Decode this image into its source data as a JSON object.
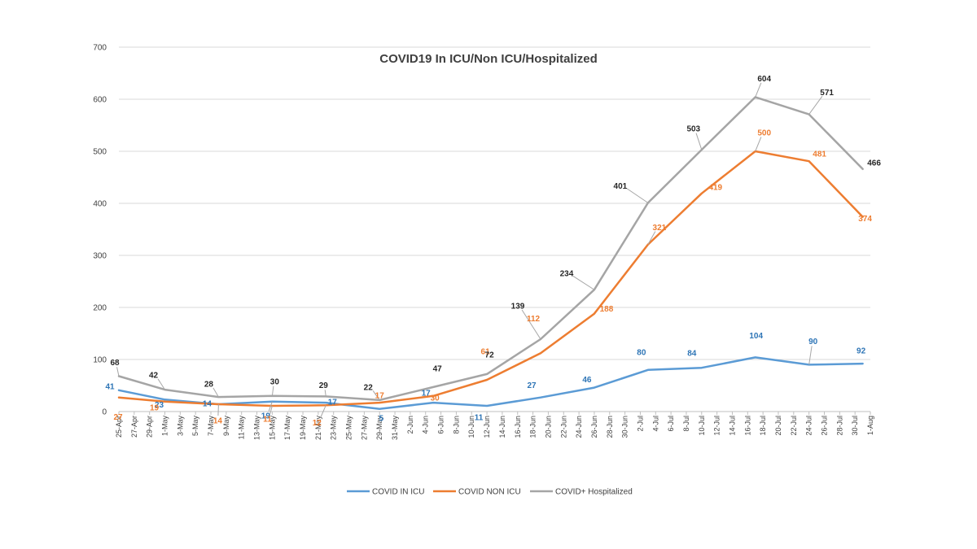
{
  "chart_data": {
    "type": "line",
    "title": "COVID19 In ICU/Non ICU/Hospitalized",
    "xlabel": "",
    "ylabel": "",
    "ylim": [
      0,
      700
    ],
    "yticks": [
      0,
      100,
      200,
      300,
      400,
      500,
      600,
      700
    ],
    "grid": true,
    "legend_position": "bottom",
    "x_tick_labels": [
      "25-Apr",
      "27-Apr",
      "29-Apr",
      "1-May",
      "3-May",
      "5-May",
      "7-May",
      "9-May",
      "11-May",
      "13-May",
      "15-May",
      "17-May",
      "19-May",
      "21-May",
      "23-May",
      "25-May",
      "27-May",
      "29-May",
      "31-May",
      "2-Jun",
      "4-Jun",
      "6-Jun",
      "8-Jun",
      "10-Jun",
      "12-Jun",
      "14-Jun",
      "16-Jun",
      "18-Jun",
      "20-Jun",
      "22-Jun",
      "24-Jun",
      "26-Jun",
      "28-Jun",
      "30-Jun",
      "2-Jul",
      "4-Jul",
      "6-Jul",
      "8-Jul",
      "10-Jul",
      "12-Jul",
      "14-Jul",
      "16-Jul",
      "18-Jul",
      "20-Jul",
      "22-Jul",
      "24-Jul",
      "26-Jul",
      "28-Jul",
      "30-Jul",
      "1-Aug"
    ],
    "x": [
      "25-Apr",
      "1-May",
      "8-May",
      "15-May",
      "22-May",
      "29-May",
      "5-Jun",
      "12-Jun",
      "19-Jun",
      "26-Jun",
      "3-Jul",
      "10-Jul",
      "17-Jul",
      "24-Jul",
      "31-Jul"
    ],
    "series": [
      {
        "name": "COVID IN ICU",
        "color": "#5b9bd5",
        "values": [
          41,
          23,
          14,
          19,
          17,
          5,
          17,
          11,
          27,
          46,
          80,
          84,
          104,
          90,
          92
        ],
        "labels": [
          "41",
          "23",
          "14",
          "19",
          "17",
          "5",
          "17",
          "11",
          "27",
          "46",
          "80",
          "84",
          "104",
          "90",
          "92"
        ]
      },
      {
        "name": "COVID NON ICU",
        "color": "#ed7d31",
        "values": [
          27,
          19,
          14,
          11,
          12,
          17,
          30,
          61,
          112,
          188,
          321,
          419,
          500,
          481,
          374
        ],
        "labels": [
          "27",
          "19",
          "14",
          "11",
          "12",
          "17",
          "30",
          "61",
          "112",
          "188",
          "321",
          "419",
          "500",
          "481",
          "374"
        ]
      },
      {
        "name": "COVID+ Hospitalized",
        "color": "#a5a5a5",
        "values": [
          68,
          42,
          28,
          30,
          29,
          22,
          47,
          72,
          139,
          234,
          401,
          503,
          604,
          571,
          466
        ],
        "labels": [
          "68",
          "42",
          "28",
          "30",
          "29",
          "22",
          "47",
          "72",
          "139",
          "234",
          "401",
          "503",
          "604",
          "571",
          "466"
        ]
      }
    ]
  },
  "label_colors": {
    "COVID IN ICU": "#2e75b6",
    "COVID NON ICU": "#ed7d31",
    "COVID+ Hospitalized": "#262626"
  }
}
